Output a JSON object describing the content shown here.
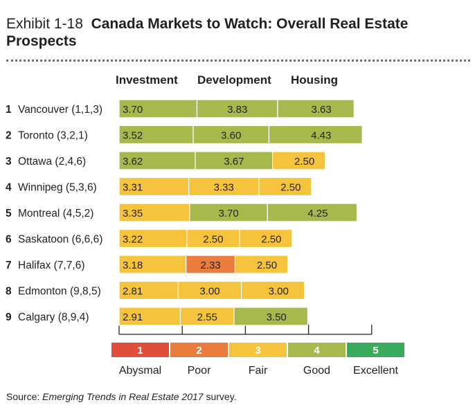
{
  "title": {
    "exhibit": "Exhibit 1-18",
    "text": "Canada Markets to Watch: Overall Real Estate Prospects"
  },
  "source": {
    "label": "Source:",
    "publication": "Emerging Trends in Real Estate 2017",
    "suffix": "survey."
  },
  "chart_data": {
    "type": "bar",
    "subtype": "stacked-horizontal",
    "categories": [
      "Vancouver (1,1,3)",
      "Toronto (3,2,1)",
      "Ottawa (2,4,6)",
      "Winnipeg (5,3,6)",
      "Montreal (4,5,2)",
      "Saskatoon (6,6,6)",
      "Halifax (7,7,6)",
      "Edmonton (9,8,5)",
      "Calgary (8,9,4)"
    ],
    "ranks": [
      "1",
      "2",
      "3",
      "4",
      "5",
      "6",
      "7",
      "8",
      "9"
    ],
    "series": [
      {
        "name": "Investment",
        "values": [
          3.7,
          3.52,
          3.62,
          3.31,
          3.35,
          3.22,
          3.18,
          2.81,
          2.91
        ]
      },
      {
        "name": "Development",
        "values": [
          3.83,
          3.6,
          3.67,
          3.33,
          3.7,
          2.5,
          2.33,
          3.0,
          2.55
        ]
      },
      {
        "name": "Housing",
        "values": [
          3.63,
          4.43,
          2.5,
          2.5,
          4.25,
          2.5,
          2.5,
          3.0,
          3.5
        ]
      }
    ],
    "scale": [
      {
        "value": "1",
        "label": "Abysmal",
        "color": "#e04e39"
      },
      {
        "value": "2",
        "label": "Poor",
        "color": "#ea7d3e"
      },
      {
        "value": "3",
        "label": "Fair",
        "color": "#f5c43c"
      },
      {
        "value": "4",
        "label": "Good",
        "color": "#a5b94c"
      },
      {
        "value": "5",
        "label": "Excellent",
        "color": "#3aaa5c"
      }
    ],
    "color_rule": "each segment colored by its value rounded to the nearest scale point",
    "xlabel": "",
    "ylabel": ""
  }
}
